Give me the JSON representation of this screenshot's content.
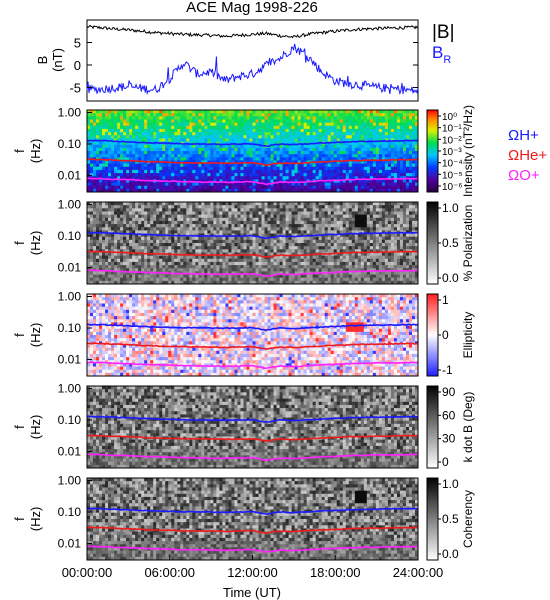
{
  "title": "ACE Mag 1998-226",
  "time_axis": {
    "label": "Time (UT)",
    "ticks": [
      "00:00:00",
      "06:00:00",
      "12:00:00",
      "18:00:00",
      "24:00:00"
    ],
    "range_hours": [
      0,
      24
    ]
  },
  "colors": {
    "black": "#000000",
    "H+": "#1a1aff",
    "He+": "#ee1c1c",
    "O+": "#ff22ff",
    "B_R": "#1a1aff"
  },
  "chart_data": [
    {
      "type": "line",
      "title": "ACE Mag 1998-226",
      "ylabel": "B (nT)",
      "ylim": [
        -8,
        10
      ],
      "yticks": [
        "5",
        "0",
        "-5"
      ],
      "ytick_values": [
        5,
        0,
        -5
      ],
      "legend": "right",
      "legend_labels": [
        "|B|",
        "B_R"
      ],
      "series": [
        {
          "name": "|B|",
          "color": "#000000",
          "x": [
            0,
            1,
            2,
            3,
            4,
            5,
            6,
            7,
            8,
            9,
            10,
            11,
            12,
            13,
            14,
            15,
            16,
            17,
            18,
            19,
            20,
            21,
            22,
            23,
            24
          ],
          "values": [
            8.5,
            8.3,
            8.0,
            7.8,
            7.5,
            7.2,
            7.0,
            6.8,
            6.7,
            6.6,
            6.4,
            6.6,
            6.8,
            7.0,
            6.5,
            6.2,
            6.8,
            7.2,
            7.5,
            7.8,
            8.0,
            8.1,
            8.2,
            8.3,
            8.4
          ]
        },
        {
          "name": "B_R",
          "color": "#1a1aff",
          "x": [
            0,
            1,
            2,
            3,
            4,
            5,
            6,
            7,
            8,
            9,
            10,
            11,
            12,
            13,
            14,
            15,
            16,
            17,
            18,
            19,
            20,
            21,
            22,
            23,
            24
          ],
          "values": [
            -5.5,
            -5.4,
            -5.0,
            -4.8,
            -5.2,
            -5.5,
            -3.0,
            0.5,
            -2.0,
            -1.5,
            -3.5,
            -2.5,
            -2.0,
            0.0,
            1.5,
            4.0,
            2.0,
            -1.5,
            -3.5,
            -4.2,
            -4.5,
            -5.0,
            -5.2,
            -5.5,
            -5.8
          ]
        }
      ]
    },
    {
      "type": "heatmap",
      "ylabel": "f (Hz)",
      "yscale": "log",
      "ylim": [
        0.003,
        1.2
      ],
      "yticks": [
        "1.00",
        "0.10",
        "0.01"
      ],
      "ytick_values": [
        1,
        0.1,
        0.01
      ],
      "colorbar": {
        "label": "Intensity (nT²/Hz)",
        "scheme": "rainbow",
        "ticks": [
          "10⁰",
          "10⁻¹",
          "10⁻²",
          "10⁻³",
          "10⁻⁴",
          "10⁻⁵",
          "10⁻⁶"
        ]
      },
      "annotations": [
        "ΩH+",
        "ΩHe+",
        "ΩO+"
      ]
    },
    {
      "type": "heatmap",
      "ylabel": "f (Hz)",
      "yscale": "log",
      "yticks": [
        "1.00",
        "0.10",
        "0.01"
      ],
      "ytick_values": [
        1,
        0.1,
        0.01
      ],
      "colorbar": {
        "label": "% Polarization",
        "scheme": "gray",
        "ticks": [
          "1.0",
          "0.5",
          "0.0"
        ],
        "range": [
          0,
          1
        ]
      }
    },
    {
      "type": "heatmap",
      "ylabel": "f (Hz)",
      "yscale": "log",
      "yticks": [
        "1.00",
        "0.10",
        "0.01"
      ],
      "ytick_values": [
        1,
        0.1,
        0.01
      ],
      "colorbar": {
        "label": "Ellipticity",
        "scheme": "bwr",
        "ticks": [
          "1",
          "0",
          "-1"
        ],
        "range": [
          -1,
          1
        ]
      }
    },
    {
      "type": "heatmap",
      "ylabel": "f (Hz)",
      "yscale": "log",
      "yticks": [
        "1.00",
        "0.10",
        "0.01"
      ],
      "ytick_values": [
        1,
        0.1,
        0.01
      ],
      "colorbar": {
        "label": "k dot B (Deg)",
        "scheme": "gray",
        "ticks": [
          "90",
          "60",
          "30",
          "0"
        ],
        "range": [
          0,
          90
        ]
      }
    },
    {
      "type": "heatmap",
      "ylabel": "f (Hz)",
      "yscale": "log",
      "yticks": [
        "1.00",
        "0.10",
        "0.01"
      ],
      "ytick_values": [
        1,
        0.1,
        0.01
      ],
      "colorbar": {
        "label": "Coherency",
        "scheme": "gray",
        "ticks": [
          "1.0",
          "0.5",
          "0.0"
        ],
        "range": [
          0,
          1
        ]
      }
    }
  ],
  "gyrofrequency_lines": {
    "x": [
      0,
      1,
      2,
      3,
      4,
      5,
      6,
      7,
      8,
      9,
      10,
      11,
      12,
      13,
      14,
      15,
      16,
      17,
      18,
      19,
      20,
      21,
      22,
      23,
      24
    ],
    "H+": [
      0.13,
      0.128,
      0.122,
      0.118,
      0.112,
      0.108,
      0.105,
      0.102,
      0.101,
      0.1,
      0.098,
      0.1,
      0.102,
      0.085,
      0.1,
      0.096,
      0.102,
      0.108,
      0.112,
      0.118,
      0.121,
      0.123,
      0.125,
      0.127,
      0.128
    ],
    "He+": [
      0.0325,
      0.032,
      0.0305,
      0.0295,
      0.028,
      0.027,
      0.0262,
      0.0255,
      0.0252,
      0.025,
      0.0245,
      0.025,
      0.0255,
      0.0215,
      0.025,
      0.024,
      0.0255,
      0.027,
      0.028,
      0.0295,
      0.0302,
      0.0308,
      0.0312,
      0.0318,
      0.032
    ],
    "O+": [
      0.0081,
      0.008,
      0.0076,
      0.0074,
      0.007,
      0.0068,
      0.0066,
      0.0064,
      0.0063,
      0.0062,
      0.0061,
      0.0062,
      0.0064,
      0.0053,
      0.0062,
      0.006,
      0.0064,
      0.0068,
      0.007,
      0.0074,
      0.0076,
      0.0077,
      0.0078,
      0.0079,
      0.008
    ]
  }
}
